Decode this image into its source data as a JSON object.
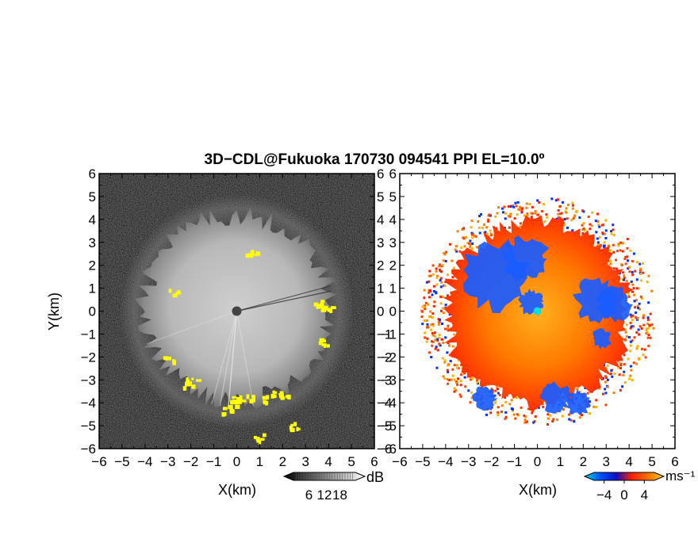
{
  "title": "3D−CDL@Fukuoka 170730 094541 PPI EL=10.0º",
  "chart_data": [
    {
      "type": "heatmap",
      "title": "",
      "xlabel": "X(km)",
      "ylabel": "Y(km)",
      "xlim": [
        -6,
        6
      ],
      "ylim": [
        -6,
        6
      ],
      "xticks": [
        "−6",
        "−5",
        "−4",
        "−3",
        "−2",
        "−1",
        "0",
        "1",
        "2",
        "3",
        "4",
        "5",
        "6"
      ],
      "yticks": [
        "6",
        "5",
        "4",
        "3",
        "2",
        "1",
        "0",
        "−1",
        "−2",
        "−3",
        "−4",
        "−5",
        "−6"
      ],
      "colorbar": {
        "unit": "dB",
        "ticks": [
          "6",
          "12",
          "18"
        ],
        "values": [
          6,
          12,
          18
        ],
        "range": [
          0,
          24
        ],
        "colors": [
          "#000000",
          "#ffffff"
        ],
        "highlight": "#ffff00"
      },
      "echo_radius_km": 4.4,
      "haze_radius_km": 4.0
    },
    {
      "type": "heatmap",
      "title": "",
      "xlabel": "X(km)",
      "ylabel": "",
      "xlim": [
        -6,
        6
      ],
      "ylim": [
        -6,
        6
      ],
      "xticks": [
        "−6",
        "−5",
        "−4",
        "−3",
        "−2",
        "−1",
        "0",
        "1",
        "2",
        "3",
        "4",
        "5",
        "6"
      ],
      "yticks": [
        "6",
        "5",
        "4",
        "3",
        "2",
        "1",
        "0",
        "−1",
        "−2",
        "−3",
        "−4",
        "−5",
        "−6"
      ],
      "colorbar": {
        "unit": "ms⁻¹",
        "ticks": [
          "−4",
          "0",
          "4"
        ],
        "values": [
          -4,
          0,
          4
        ],
        "range": [
          -6,
          6
        ],
        "colors": [
          "#00d8d8",
          "#0050ff",
          "#1010c0",
          "#ff2000",
          "#ff7000",
          "#ffd000"
        ]
      },
      "echo_radius_km": 4.4
    }
  ]
}
